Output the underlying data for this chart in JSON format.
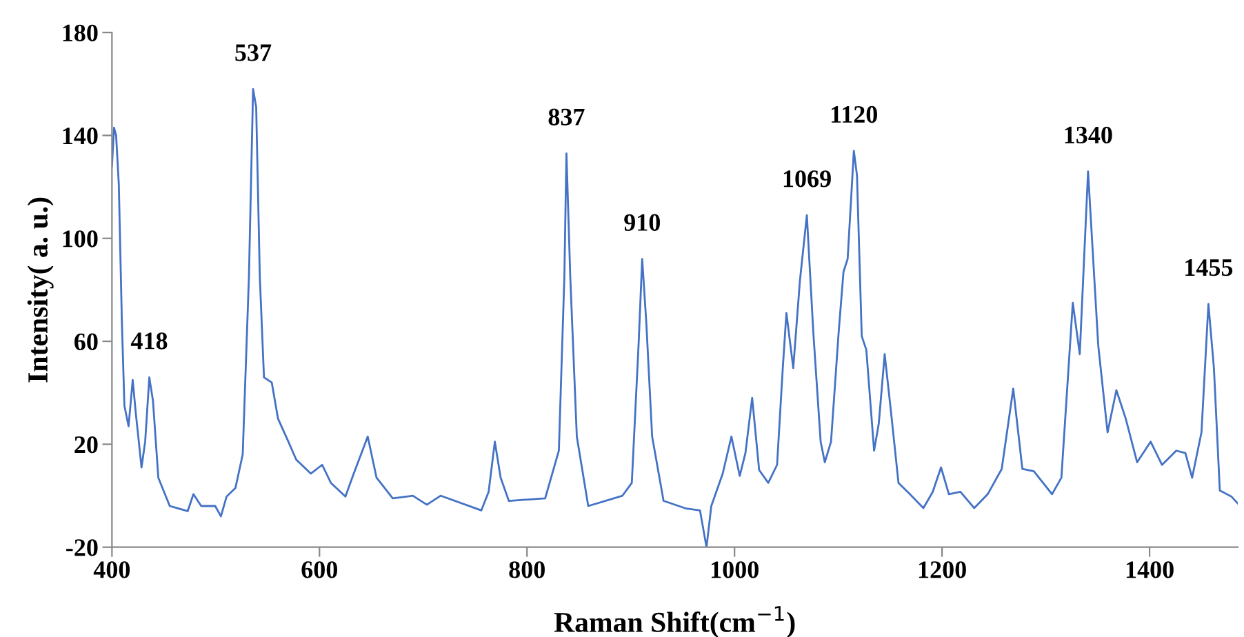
{
  "chart_data": {
    "type": "line",
    "xlabel": "Raman Shift(cm$^{−1}$)",
    "ylabel": "Intensity( a. u.)",
    "xlim": [
      400,
      1485
    ],
    "xticks": [
      400,
      600,
      800,
      1000,
      1200,
      1400
    ],
    "ylim": [
      -20,
      180
    ],
    "yticks": [
      -20,
      20,
      60,
      100,
      140,
      180
    ],
    "grid": false,
    "legend": false,
    "marker": "none",
    "line_style": "solid",
    "series": [
      {
        "color": "#4472c4",
        "x": [
          400,
          402,
          404,
          406.6,
          409.6,
          412,
          416,
          420,
          423,
          428.5,
          432,
          436,
          439.5,
          444.7,
          455.7,
          473,
          478.5,
          486,
          499.5,
          505,
          510.5,
          519,
          526,
          532,
          536,
          539,
          542.5,
          546.5,
          554,
          560,
          570,
          577.6,
          591.7,
          602.6,
          611,
          625,
          633,
          646.5,
          655,
          670.6,
          690,
          703.5,
          716.7,
          756,
          763,
          769,
          774.6,
          782.5,
          817.5,
          830.7,
          836,
          838,
          841.7,
          848,
          859,
          892,
          901,
          907.5,
          911,
          915,
          920.6,
          931.6,
          953.5,
          966.7,
          973,
          977.6,
          988.6,
          997,
          1005,
          1010.5,
          1017,
          1023.7,
          1032.5,
          1041,
          1046.5,
          1050,
          1056.6,
          1063,
          1069.7,
          1076,
          1083,
          1087,
          1093,
          1100.4,
          1105,
          1109,
          1115,
          1118,
          1122.6,
          1127,
          1134.5,
          1139,
          1144.7,
          1151,
          1158,
          1169,
          1182,
          1191,
          1199,
          1206.6,
          1217.7,
          1231,
          1244,
          1257.5,
          1268.6,
          1277.4,
          1288.5,
          1306,
          1315,
          1326,
          1332.7,
          1340.7,
          1350.5,
          1359.5,
          1368,
          1377,
          1388,
          1401,
          1412,
          1425.7,
          1434.5,
          1441,
          1450,
          1456.7,
          1462,
          1467.7,
          1478.8,
          1485
        ],
        "values": [
          128,
          143,
          140,
          121,
          67,
          35,
          27,
          45,
          32,
          11,
          21,
          46,
          37,
          7,
          -4,
          -6,
          0.6,
          -4,
          -4,
          -8,
          -0.3,
          3,
          16,
          85,
          158,
          151,
          85,
          46,
          44,
          30,
          21,
          14,
          8.6,
          12,
          5,
          -0.3,
          8.6,
          23,
          7,
          -1,
          0,
          -3.5,
          0,
          -5.7,
          1.5,
          21,
          7,
          -2,
          -1,
          17.5,
          85,
          133,
          85,
          23,
          -4,
          0,
          5,
          58.5,
          92,
          67,
          23,
          -2,
          -5,
          -5.7,
          -20,
          -4,
          8.6,
          23,
          7.7,
          16.6,
          38,
          10,
          5,
          12,
          49.6,
          71,
          49.6,
          83.5,
          109,
          63,
          21,
          13,
          21,
          63.8,
          87,
          92,
          134,
          124.5,
          62,
          56.7,
          17.5,
          28,
          55,
          31.8,
          5,
          0.6,
          -4.8,
          1.5,
          11,
          0.6,
          1.5,
          -4.8,
          0.6,
          10.4,
          41.6,
          10.4,
          9.5,
          0.6,
          7,
          75,
          55,
          126,
          58.5,
          24.6,
          41,
          30,
          13,
          21,
          12,
          17.5,
          16.6,
          7,
          24.6,
          74.5,
          49.6,
          2,
          -0.3,
          -3
        ]
      }
    ],
    "annotations": [
      {
        "text": "418",
        "x": 436,
        "y": 46
      },
      {
        "text": "537",
        "x": 536,
        "y": 158
      },
      {
        "text": "837",
        "x": 838,
        "y": 133
      },
      {
        "text": "910",
        "x": 911,
        "y": 92
      },
      {
        "text": "1069",
        "x": 1069.7,
        "y": 109
      },
      {
        "text": "1120",
        "x": 1115,
        "y": 134
      },
      {
        "text": "1340",
        "x": 1340.7,
        "y": 126
      },
      {
        "text": "1455",
        "x": 1456.7,
        "y": 74.5
      }
    ]
  }
}
